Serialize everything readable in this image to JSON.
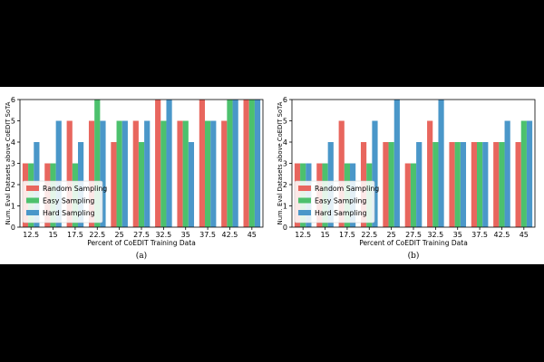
{
  "chart_data": [
    {
      "type": "bar",
      "panel_label": "(a)",
      "title": "",
      "xlabel": "Percent of CoEDIT Training Data",
      "ylabel": "Num. Eval Datasets above CoEDIT SoTA",
      "categories": [
        "12.5",
        "15",
        "17.5",
        "22.5",
        "25",
        "27.5",
        "32.5",
        "35",
        "37.5",
        "42.5",
        "45"
      ],
      "ylim": [
        0,
        6
      ],
      "yticks": [
        "0",
        "1",
        "2",
        "3",
        "4",
        "5",
        "6"
      ],
      "grid": false,
      "legend_position": "bottom-left",
      "series": [
        {
          "name": "Random Sampling",
          "color": "#e8665e",
          "values": [
            3,
            3,
            5,
            5,
            4,
            5,
            6,
            5,
            6,
            5,
            6
          ]
        },
        {
          "name": "Easy Sampling",
          "color": "#4cc16d",
          "values": [
            3,
            3,
            3,
            6,
            5,
            4,
            5,
            5,
            5,
            6,
            6
          ]
        },
        {
          "name": "Hard Sampling",
          "color": "#4a97c9",
          "values": [
            4,
            5,
            4,
            5,
            5,
            5,
            6,
            4,
            5,
            6,
            6
          ]
        }
      ]
    },
    {
      "type": "bar",
      "panel_label": "(b)",
      "title": "",
      "xlabel": "Percent of CoEDIT Training Data",
      "ylabel": "Num. Eval Datasets above CoEDIT SoTA",
      "categories": [
        "12.5",
        "15",
        "17.5",
        "22.5",
        "25",
        "27.5",
        "32.5",
        "35",
        "37.5",
        "42.5",
        "45"
      ],
      "ylim": [
        0,
        6
      ],
      "yticks": [
        "0",
        "1",
        "2",
        "3",
        "4",
        "5",
        "6"
      ],
      "grid": false,
      "legend_position": "bottom-left",
      "series": [
        {
          "name": "Random Sampling",
          "color": "#e8665e",
          "values": [
            3,
            3,
            5,
            4,
            4,
            3,
            5,
            4,
            4,
            4,
            4
          ]
        },
        {
          "name": "Easy Sampling",
          "color": "#4cc16d",
          "values": [
            3,
            3,
            3,
            3,
            4,
            3,
            4,
            4,
            4,
            4,
            5
          ]
        },
        {
          "name": "Hard Sampling",
          "color": "#4a97c9",
          "values": [
            3,
            4,
            3,
            5,
            6,
            4,
            6,
            4,
            4,
            5,
            5
          ]
        }
      ]
    }
  ]
}
